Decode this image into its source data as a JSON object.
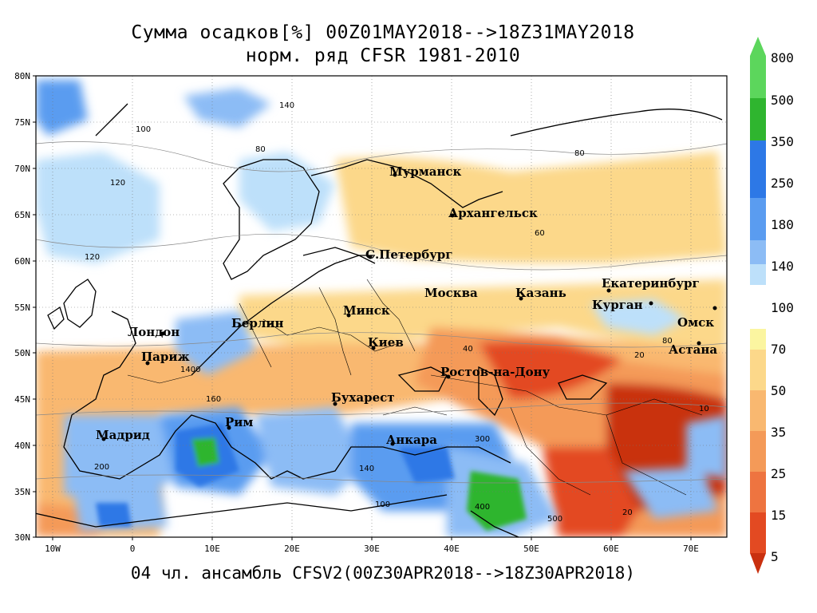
{
  "title_line1": "Сумма осадков[%] 00Z01MAY2018-->18Z31MAY2018",
  "title_line2": "норм. ряд CFSR 1981-2010",
  "footer": "04 чл. ансамбль CFSV2(00Z30APR2018-->18Z30APR2018)",
  "axes": {
    "lat_labels": [
      "80N",
      "75N",
      "70N",
      "65N",
      "60N",
      "55N",
      "50N",
      "45N",
      "40N",
      "35N",
      "30N"
    ],
    "lon_labels": [
      "10W",
      "0",
      "10E",
      "20E",
      "30E",
      "40E",
      "50E",
      "60E",
      "70E"
    ]
  },
  "cities": [
    {
      "name": "Мурманск"
    },
    {
      "name": "Архангельск"
    },
    {
      "name": "С.Петербург"
    },
    {
      "name": "Москва"
    },
    {
      "name": "Казань"
    },
    {
      "name": "Екатеринбург"
    },
    {
      "name": "Курган"
    },
    {
      "name": "Омск"
    },
    {
      "name": "Астана"
    },
    {
      "name": "Минск"
    },
    {
      "name": "Берлин"
    },
    {
      "name": "Лондон"
    },
    {
      "name": "Париж"
    },
    {
      "name": "Киев"
    },
    {
      "name": "Ростов-на-Дону"
    },
    {
      "name": "Бухарест"
    },
    {
      "name": "Рим"
    },
    {
      "name": "Мадрид"
    },
    {
      "name": "Анкара"
    }
  ],
  "contour_labels": [
    "100",
    "140",
    "80",
    "120",
    "60",
    "40",
    "20",
    "160",
    "200",
    "300",
    "400",
    "500",
    "10",
    "1400"
  ],
  "legend": {
    "upper": [
      {
        "label": "800",
        "color": "#5cd65c"
      },
      {
        "label": "500",
        "color": "#2fb52f"
      },
      {
        "label": "350",
        "color": "#1a9a1a"
      },
      {
        "label": "250",
        "color": "#2d78e6"
      },
      {
        "label": "180",
        "color": "#5a9cf0"
      },
      {
        "label": "140",
        "color": "#8cbcf5"
      },
      {
        "label": "",
        "color": "#bde0fa"
      }
    ],
    "mid_label": "100",
    "lower": [
      {
        "label": "70",
        "color": "#fbf5a0"
      },
      {
        "label": "50",
        "color": "#fcd88a"
      },
      {
        "label": "35",
        "color": "#f9b870"
      },
      {
        "label": "25",
        "color": "#f49a58"
      },
      {
        "label": "15",
        "color": "#ee7440"
      },
      {
        "label": "",
        "color": "#e34a22"
      },
      {
        "label": "5",
        "color": "#c9300f"
      }
    ]
  }
}
